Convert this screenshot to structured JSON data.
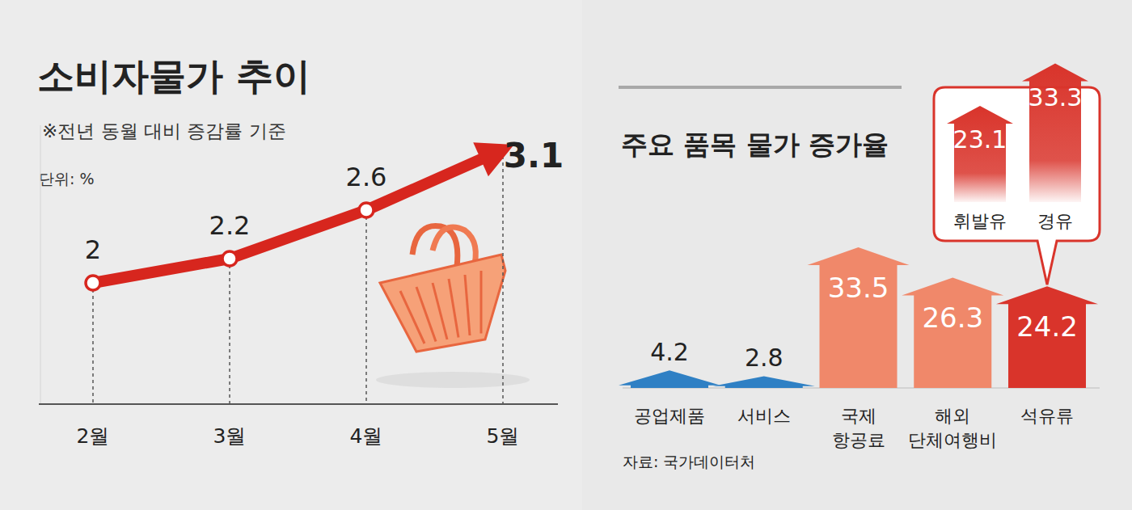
{
  "chart_data": [
    {
      "type": "line",
      "title": "소비자물가 추이",
      "subtitle": "※전년 동월 대비 증감률 기준",
      "ylabel": "단위: %",
      "categories": [
        "2월",
        "3월",
        "4월",
        "5월"
      ],
      "values": [
        2,
        2.2,
        2.6,
        3.1
      ],
      "color": "#d7261e",
      "ylim": [
        1,
        3.3
      ],
      "data_labels": true,
      "tick_labels": "x"
    },
    {
      "type": "bar",
      "title": "주요 품목 물가 증가율",
      "source": "자료: 국가데이터처",
      "categories": [
        "공업제품",
        "서비스",
        "국제 항공료",
        "해외 단체여행비",
        "석유류"
      ],
      "values": [
        4.2,
        2.8,
        33.5,
        26.3,
        24.2
      ],
      "colors": [
        "#2f80c4",
        "#2f80c4",
        "#f0886a",
        "#f0886a",
        "#d9342b"
      ],
      "ylim": [
        0,
        36
      ],
      "data_labels": true,
      "tick_labels": "x"
    },
    {
      "type": "bar",
      "categories": [
        "휘발유",
        "경유"
      ],
      "values": [
        23.1,
        33.3
      ],
      "color": "#d9342b",
      "ylim": [
        0,
        34
      ],
      "data_labels": true,
      "tick_labels": "x"
    }
  ]
}
